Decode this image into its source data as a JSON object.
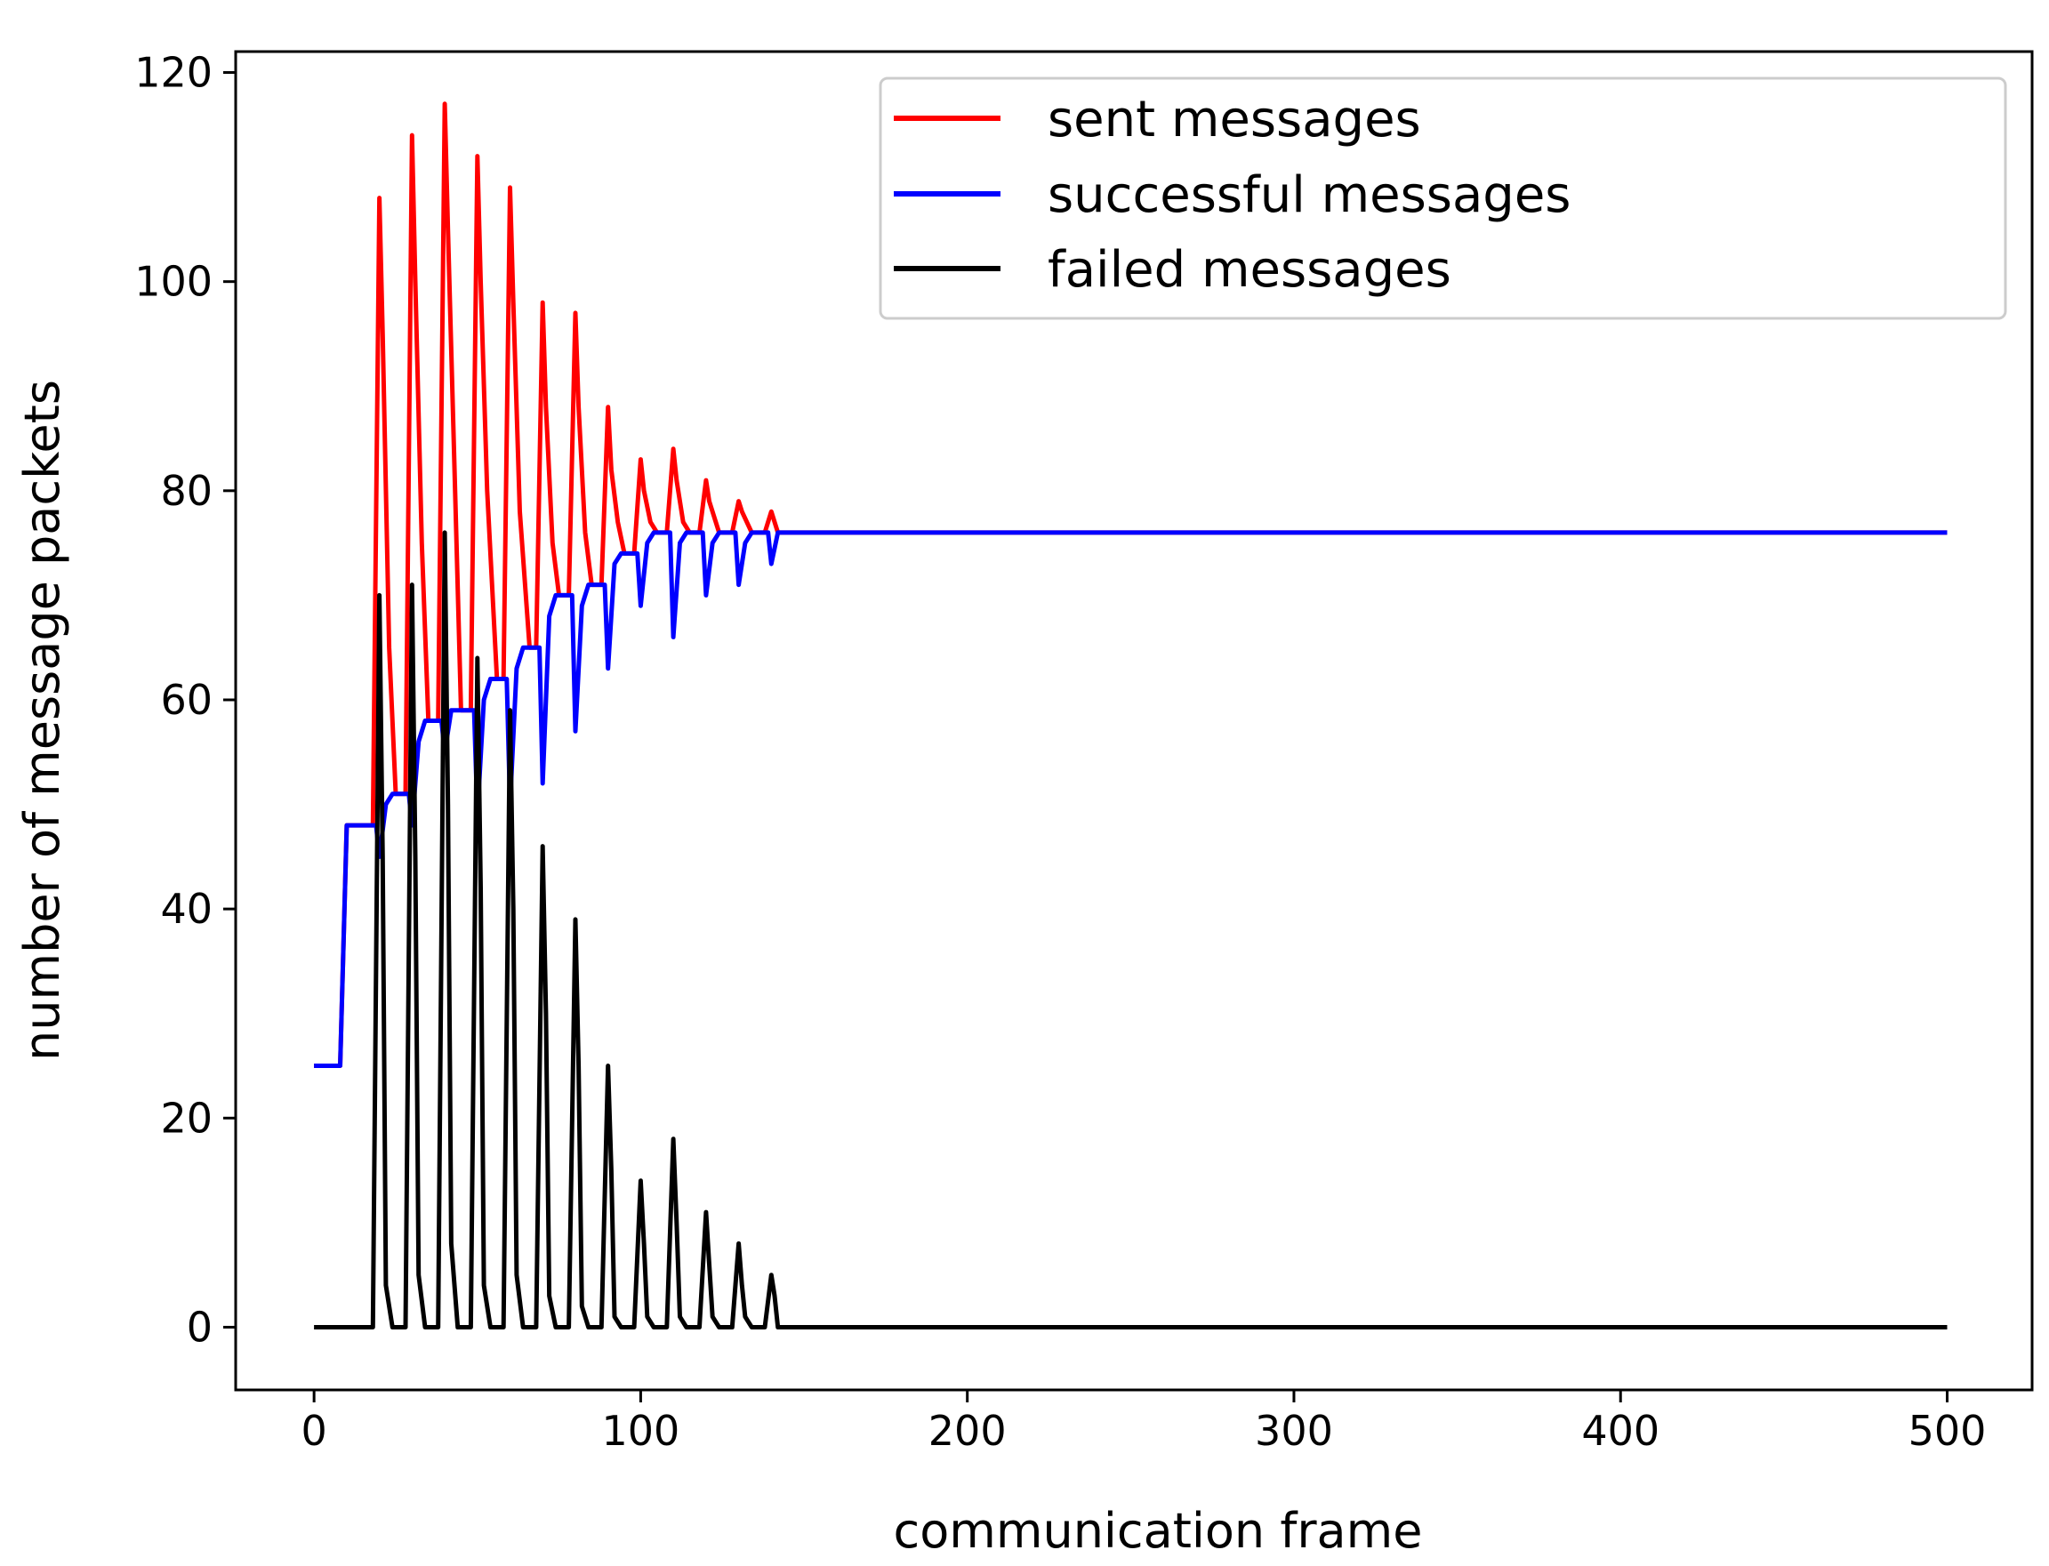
{
  "chart_data": {
    "type": "line",
    "title": "",
    "xlabel": "communication frame",
    "ylabel": "number of message packets",
    "xlim": [
      -24,
      526
    ],
    "ylim": [
      -6,
      122
    ],
    "xticks": [
      0,
      100,
      200,
      300,
      400,
      500
    ],
    "yticks": [
      0,
      20,
      40,
      60,
      80,
      100,
      120
    ],
    "grid": false,
    "legend": {
      "position": "top-right",
      "entries": [
        "sent messages",
        "successful messages",
        "failed messages"
      ]
    },
    "series": [
      {
        "name": "sent messages",
        "color": "#ff0000",
        "points": [
          [
            0,
            25
          ],
          [
            8,
            25
          ],
          [
            10,
            48
          ],
          [
            18,
            48
          ],
          [
            20,
            108
          ],
          [
            21,
            95
          ],
          [
            23,
            65
          ],
          [
            25,
            51
          ],
          [
            28,
            51
          ],
          [
            30,
            114
          ],
          [
            31,
            100
          ],
          [
            33,
            75
          ],
          [
            35,
            58
          ],
          [
            38,
            58
          ],
          [
            40,
            117
          ],
          [
            41,
            105
          ],
          [
            43,
            82
          ],
          [
            45,
            59
          ],
          [
            48,
            59
          ],
          [
            50,
            112
          ],
          [
            51,
            100
          ],
          [
            53,
            80
          ],
          [
            56,
            62
          ],
          [
            58,
            62
          ],
          [
            60,
            109
          ],
          [
            61,
            98
          ],
          [
            63,
            78
          ],
          [
            66,
            65
          ],
          [
            68,
            65
          ],
          [
            70,
            98
          ],
          [
            71,
            88
          ],
          [
            73,
            75
          ],
          [
            75,
            70
          ],
          [
            78,
            70
          ],
          [
            80,
            97
          ],
          [
            81,
            88
          ],
          [
            83,
            76
          ],
          [
            85,
            71
          ],
          [
            88,
            71
          ],
          [
            90,
            88
          ],
          [
            91,
            82
          ],
          [
            93,
            77
          ],
          [
            95,
            74
          ],
          [
            98,
            74
          ],
          [
            100,
            83
          ],
          [
            101,
            80
          ],
          [
            103,
            77
          ],
          [
            105,
            76
          ],
          [
            108,
            76
          ],
          [
            110,
            84
          ],
          [
            111,
            81
          ],
          [
            113,
            77
          ],
          [
            115,
            76
          ],
          [
            118,
            76
          ],
          [
            120,
            81
          ],
          [
            121,
            79
          ],
          [
            124,
            76
          ],
          [
            128,
            76
          ],
          [
            130,
            79
          ],
          [
            131,
            78
          ],
          [
            134,
            76
          ],
          [
            138,
            76
          ],
          [
            140,
            78
          ],
          [
            142,
            76
          ],
          [
            500,
            76
          ]
        ]
      },
      {
        "name": "successful messages",
        "color": "#0000ff",
        "points": [
          [
            0,
            25
          ],
          [
            8,
            25
          ],
          [
            10,
            48
          ],
          [
            19,
            48
          ],
          [
            20,
            45
          ],
          [
            22,
            50
          ],
          [
            24,
            51
          ],
          [
            29,
            51
          ],
          [
            30,
            48
          ],
          [
            32,
            56
          ],
          [
            34,
            58
          ],
          [
            39,
            58
          ],
          [
            40,
            55
          ],
          [
            42,
            59
          ],
          [
            44,
            59
          ],
          [
            49,
            59
          ],
          [
            50,
            49
          ],
          [
            52,
            60
          ],
          [
            54,
            62
          ],
          [
            59,
            62
          ],
          [
            60,
            50
          ],
          [
            62,
            63
          ],
          [
            64,
            65
          ],
          [
            69,
            65
          ],
          [
            70,
            52
          ],
          [
            72,
            68
          ],
          [
            74,
            70
          ],
          [
            79,
            70
          ],
          [
            80,
            57
          ],
          [
            82,
            69
          ],
          [
            84,
            71
          ],
          [
            89,
            71
          ],
          [
            90,
            63
          ],
          [
            92,
            73
          ],
          [
            94,
            74
          ],
          [
            99,
            74
          ],
          [
            100,
            69
          ],
          [
            102,
            75
          ],
          [
            104,
            76
          ],
          [
            109,
            76
          ],
          [
            110,
            66
          ],
          [
            112,
            75
          ],
          [
            114,
            76
          ],
          [
            119,
            76
          ],
          [
            120,
            70
          ],
          [
            122,
            75
          ],
          [
            124,
            76
          ],
          [
            129,
            76
          ],
          [
            130,
            71
          ],
          [
            132,
            75
          ],
          [
            134,
            76
          ],
          [
            139,
            76
          ],
          [
            140,
            73
          ],
          [
            142,
            76
          ],
          [
            500,
            76
          ]
        ]
      },
      {
        "name": "failed messages",
        "color": "#000000",
        "points": [
          [
            0,
            0
          ],
          [
            18,
            0
          ],
          [
            20,
            70
          ],
          [
            21,
            45
          ],
          [
            22,
            4
          ],
          [
            24,
            0
          ],
          [
            28,
            0
          ],
          [
            30,
            71
          ],
          [
            31,
            45
          ],
          [
            32,
            5
          ],
          [
            34,
            0
          ],
          [
            38,
            0
          ],
          [
            40,
            76
          ],
          [
            41,
            50
          ],
          [
            42,
            8
          ],
          [
            44,
            0
          ],
          [
            48,
            0
          ],
          [
            50,
            64
          ],
          [
            51,
            42
          ],
          [
            52,
            4
          ],
          [
            54,
            0
          ],
          [
            58,
            0
          ],
          [
            60,
            59
          ],
          [
            61,
            40
          ],
          [
            62,
            5
          ],
          [
            64,
            0
          ],
          [
            68,
            0
          ],
          [
            70,
            46
          ],
          [
            71,
            30
          ],
          [
            72,
            3
          ],
          [
            74,
            0
          ],
          [
            78,
            0
          ],
          [
            80,
            39
          ],
          [
            81,
            25
          ],
          [
            82,
            2
          ],
          [
            84,
            0
          ],
          [
            88,
            0
          ],
          [
            90,
            25
          ],
          [
            91,
            15
          ],
          [
            92,
            1
          ],
          [
            94,
            0
          ],
          [
            98,
            0
          ],
          [
            100,
            14
          ],
          [
            101,
            8
          ],
          [
            102,
            1
          ],
          [
            104,
            0
          ],
          [
            108,
            0
          ],
          [
            110,
            18
          ],
          [
            111,
            10
          ],
          [
            112,
            1
          ],
          [
            114,
            0
          ],
          [
            118,
            0
          ],
          [
            120,
            11
          ],
          [
            121,
            6
          ],
          [
            122,
            1
          ],
          [
            124,
            0
          ],
          [
            128,
            0
          ],
          [
            130,
            8
          ],
          [
            131,
            4
          ],
          [
            132,
            1
          ],
          [
            134,
            0
          ],
          [
            138,
            0
          ],
          [
            140,
            5
          ],
          [
            141,
            3
          ],
          [
            142,
            0
          ],
          [
            500,
            0
          ]
        ]
      }
    ]
  }
}
